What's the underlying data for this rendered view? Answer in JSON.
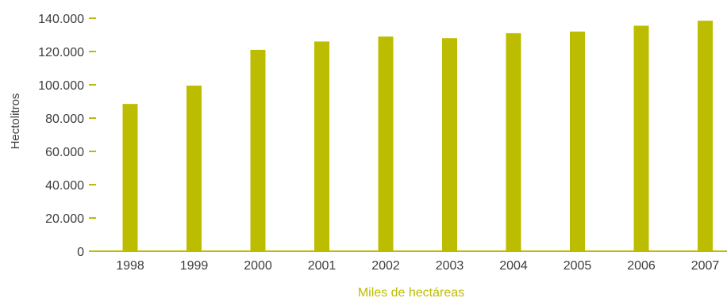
{
  "chart_data": {
    "type": "bar",
    "categories": [
      "1998",
      "1999",
      "2000",
      "2001",
      "2002",
      "2003",
      "2004",
      "2005",
      "2006",
      "2007"
    ],
    "series": [
      {
        "values": [
          88500,
          99500,
          121000,
          126000,
          129000,
          128000,
          131000,
          132000,
          135500,
          138500
        ]
      }
    ],
    "title": "",
    "xlabel": "Miles de hectáreas",
    "ylabel": "Hectolitros",
    "ylim": [
      0,
      140000
    ],
    "yticks": [
      0,
      20000,
      40000,
      60000,
      80000,
      100000,
      120000,
      140000
    ],
    "ytick_labels": [
      "0",
      "20.000",
      "40.000",
      "60.000",
      "80.000",
      "100.000",
      "120.000",
      "140.000"
    ],
    "grid": false,
    "legend": "none",
    "colors": {
      "bar": "#bcbd00",
      "axis": "#bcbd00",
      "xlabel": "#bcbd00",
      "text": "#3d3d3d"
    }
  }
}
